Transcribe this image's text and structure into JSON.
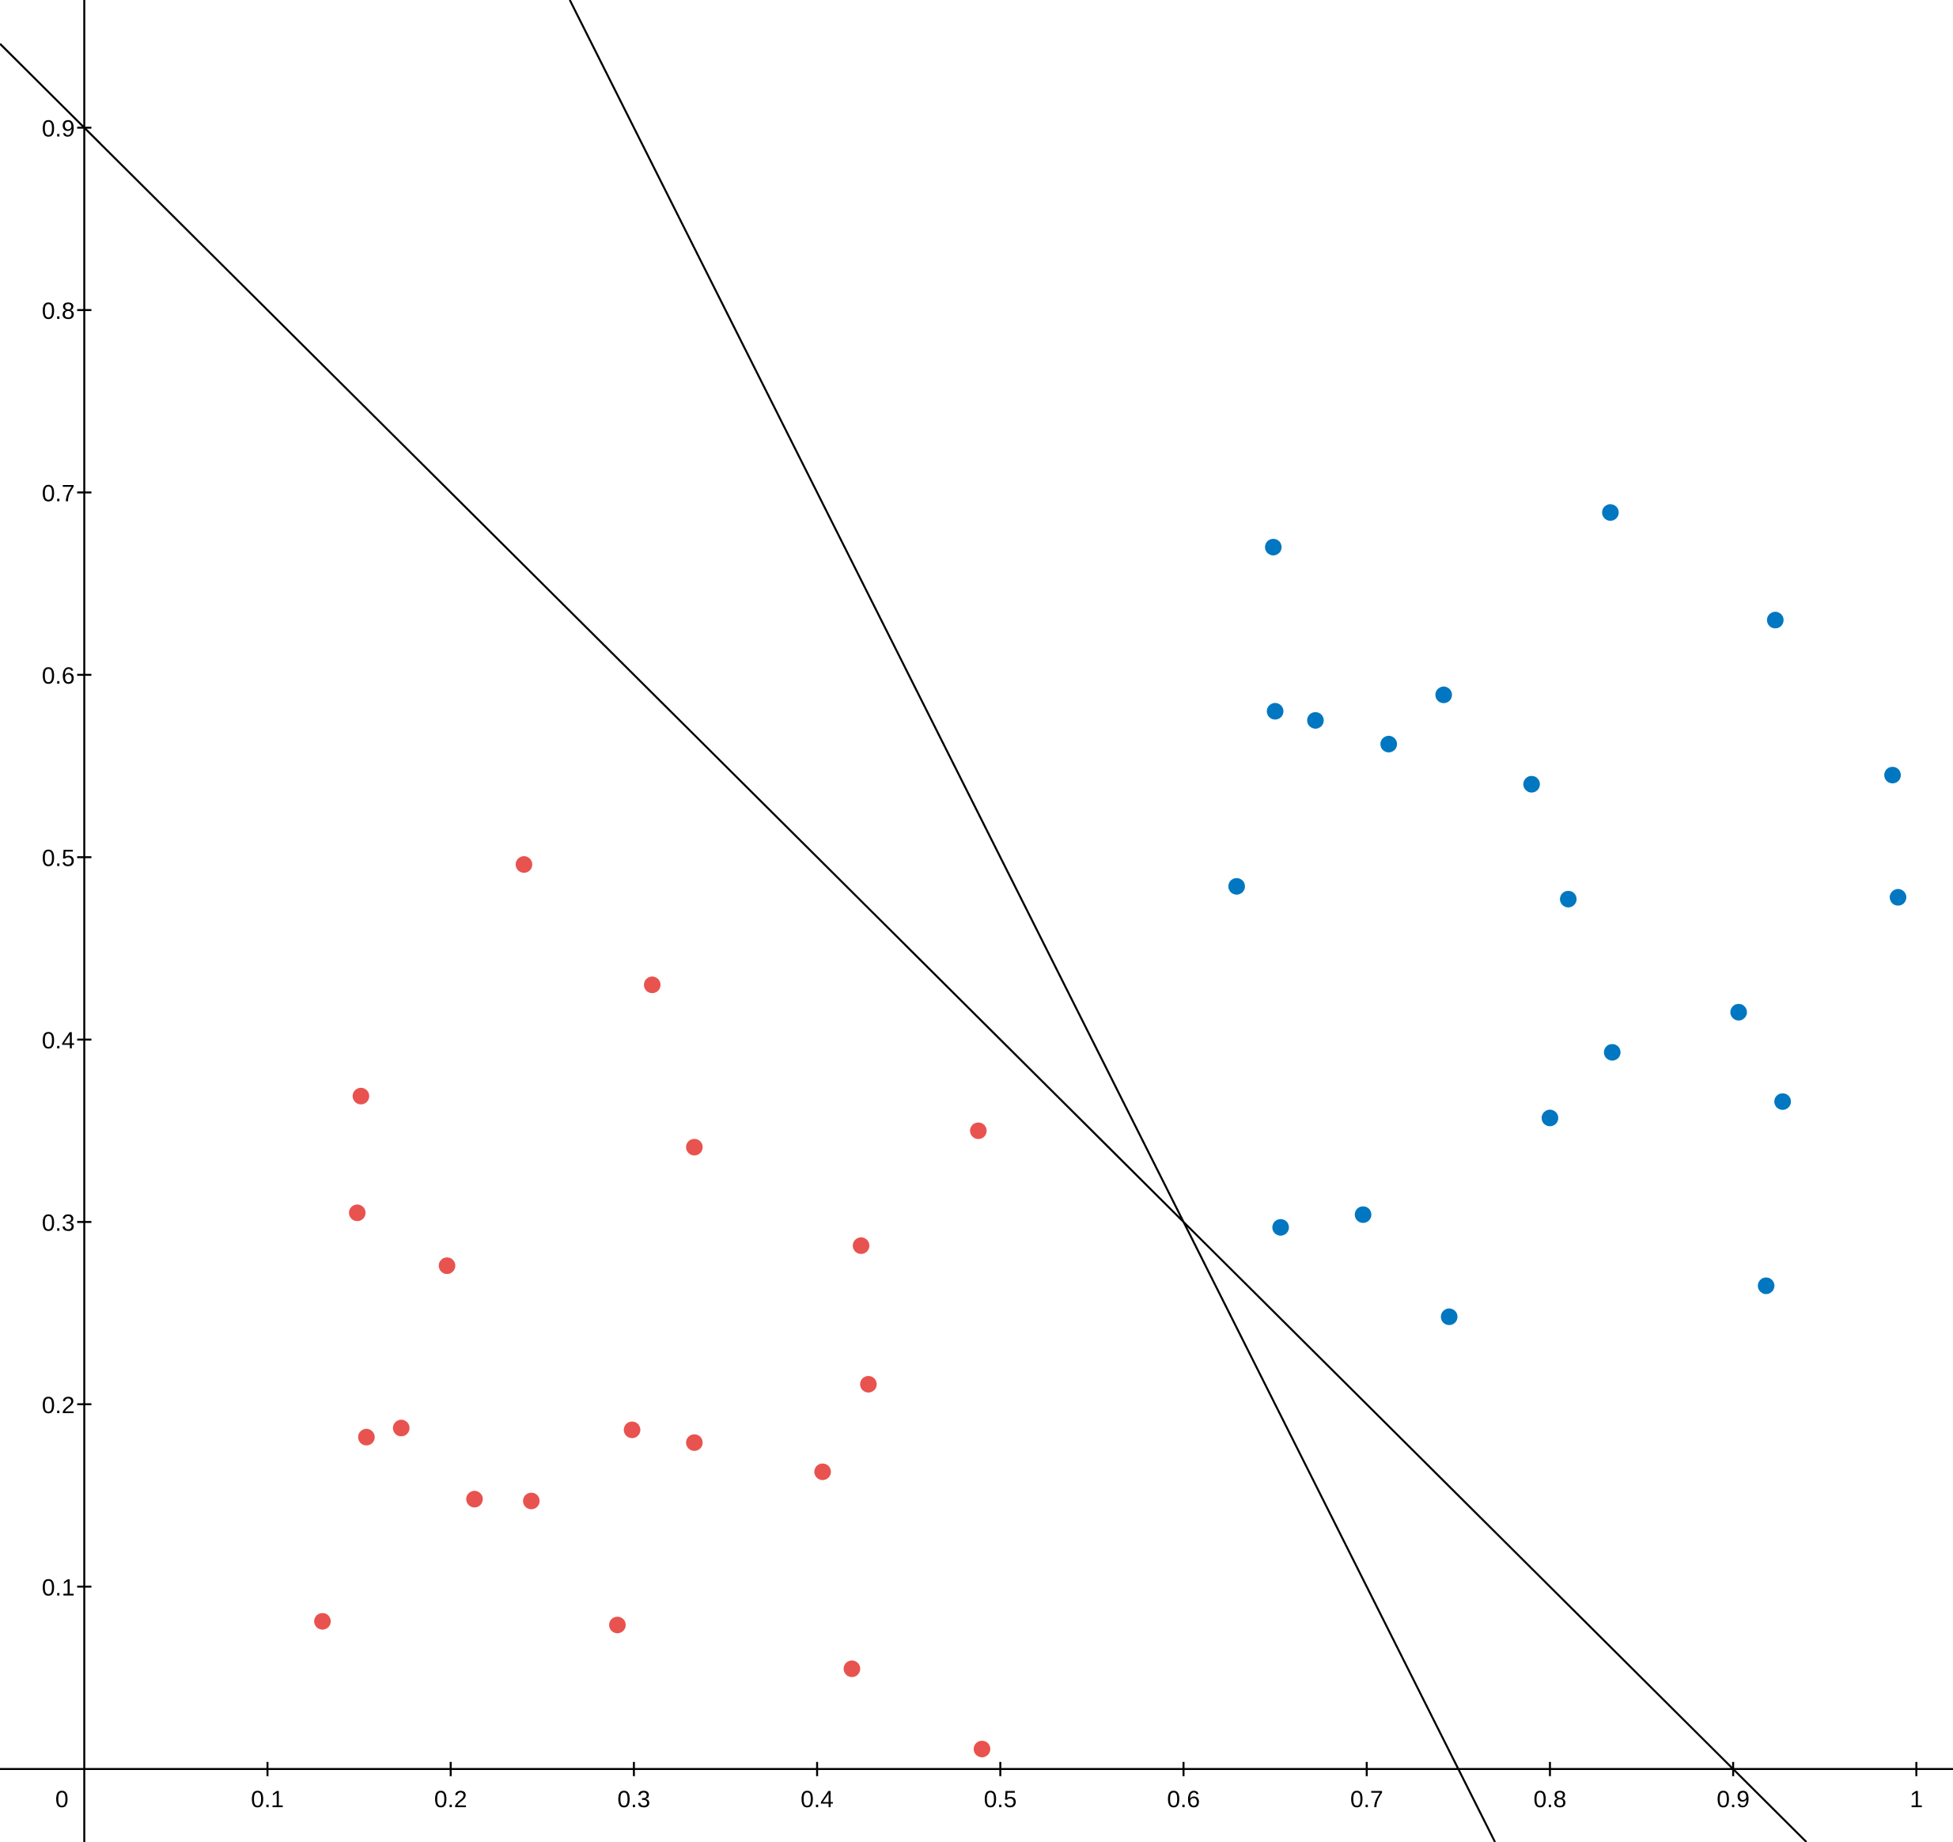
{
  "chart_data": {
    "type": "scatter",
    "title": "",
    "xlabel": "",
    "ylabel": "",
    "xlim": [
      -0.046,
      1.02
    ],
    "ylim": [
      -0.04,
      0.97
    ],
    "grid": false,
    "x_ticks": [
      "0",
      "0.1",
      "0.2",
      "0.3",
      "0.4",
      "0.5",
      "0.6",
      "0.7",
      "0.8",
      "0.9",
      "1"
    ],
    "y_ticks": [
      "0.1",
      "0.2",
      "0.3",
      "0.4",
      "0.5",
      "0.6",
      "0.7",
      "0.8",
      "0.9"
    ],
    "series": [
      {
        "color": "#e8534f",
        "points": [
          [
            0.24,
            0.496
          ],
          [
            0.31,
            0.43
          ],
          [
            0.151,
            0.369
          ],
          [
            0.333,
            0.341
          ],
          [
            0.488,
            0.35
          ],
          [
            0.149,
            0.305
          ],
          [
            0.198,
            0.276
          ],
          [
            0.424,
            0.287
          ],
          [
            0.428,
            0.211
          ],
          [
            0.154,
            0.182
          ],
          [
            0.173,
            0.187
          ],
          [
            0.299,
            0.186
          ],
          [
            0.333,
            0.179
          ],
          [
            0.403,
            0.163
          ],
          [
            0.213,
            0.148
          ],
          [
            0.244,
            0.147
          ],
          [
            0.13,
            0.081
          ],
          [
            0.291,
            0.079
          ],
          [
            0.419,
            0.055
          ],
          [
            0.49,
            0.011
          ]
        ]
      },
      {
        "color": "#0077c0",
        "points": [
          [
            0.833,
            0.689
          ],
          [
            0.649,
            0.67
          ],
          [
            0.923,
            0.63
          ],
          [
            0.742,
            0.589
          ],
          [
            0.65,
            0.58
          ],
          [
            0.672,
            0.575
          ],
          [
            0.712,
            0.562
          ],
          [
            0.79,
            0.54
          ],
          [
            0.987,
            0.545
          ],
          [
            0.629,
            0.484
          ],
          [
            0.81,
            0.477
          ],
          [
            0.99,
            0.478
          ],
          [
            0.903,
            0.415
          ],
          [
            0.834,
            0.393
          ],
          [
            0.927,
            0.366
          ],
          [
            0.8,
            0.357
          ],
          [
            0.653,
            0.297
          ],
          [
            0.698,
            0.304
          ],
          [
            0.918,
            0.265
          ],
          [
            0.745,
            0.248
          ]
        ]
      }
    ],
    "lines": [
      {
        "x1": -0.046,
        "y1": 0.946,
        "x2": 0.94,
        "y2": -0.04
      },
      {
        "x1": 0.265,
        "y1": 0.97,
        "x2": 0.77,
        "y2": -0.04
      }
    ]
  }
}
